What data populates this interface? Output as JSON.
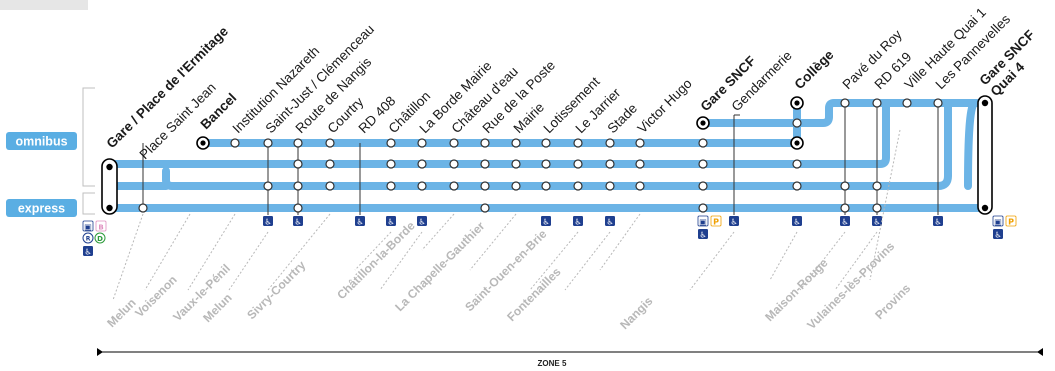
{
  "services": {
    "omnibus": "omnibus",
    "express": "express"
  },
  "stops": [
    {
      "label": "Gare / Place de l'Ermitage",
      "bold": true
    },
    {
      "label": "Place Saint Jean",
      "bold": false
    },
    {
      "label": "Bancel",
      "bold": true
    },
    {
      "label": "Institution Nazareth",
      "bold": false
    },
    {
      "label": "Saint-Just / Clémenceau",
      "bold": false
    },
    {
      "label": "Route de Nangis",
      "bold": false
    },
    {
      "label": "Courtry",
      "bold": false
    },
    {
      "label": "RD 408",
      "bold": false
    },
    {
      "label": "Châtillon",
      "bold": false
    },
    {
      "label": "La Borde Mairie",
      "bold": false
    },
    {
      "label": "Château d'eau",
      "bold": false
    },
    {
      "label": "Rue de la Poste",
      "bold": false
    },
    {
      "label": "Mairie",
      "bold": false
    },
    {
      "label": "Lotissement",
      "bold": false
    },
    {
      "label": "Le Jarrier",
      "bold": false
    },
    {
      "label": "Stade",
      "bold": false
    },
    {
      "label": "Victor Hugo",
      "bold": false
    },
    {
      "label": "Gare SNCF",
      "bold": true
    },
    {
      "label": "Gendarmerie",
      "bold": false
    },
    {
      "label": "Collège",
      "bold": true
    },
    {
      "label": "Pavé du Roy",
      "bold": false
    },
    {
      "label": "RD 619",
      "bold": false
    },
    {
      "label": "Ville Haute Quai 1",
      "bold": false
    },
    {
      "label": "Les Pannevelles",
      "bold": false
    },
    {
      "label": "Gare SNCF",
      "bold": true
    },
    {
      "label": "Quai 4",
      "bold": true
    }
  ],
  "communes": [
    "Melun",
    "Voisenon",
    "Vaux-le-Pénil",
    "Melun",
    "Sivry-Courtry",
    "Châtillon-la-Borde",
    "La Chapelle-Gauthier",
    "Saint-Ouen-en-Brie",
    "Fontenailles",
    "Nangis",
    "Maison-Rouge",
    "Vulaines-lès-Provins",
    "Provins"
  ],
  "zone": "ZONE 5",
  "colors": {
    "line": "#6cb4e6",
    "badge": "#5aaee3",
    "icon": "#1f3f8f",
    "parking": "#f0a000",
    "bracket": "#bfbfbf",
    "commune": "#b8b8b8"
  },
  "icons": [
    "wheelchair-icon",
    "train-icon",
    "parking-icon",
    "bus-icon",
    "rer-icon",
    "metro-icon"
  ]
}
